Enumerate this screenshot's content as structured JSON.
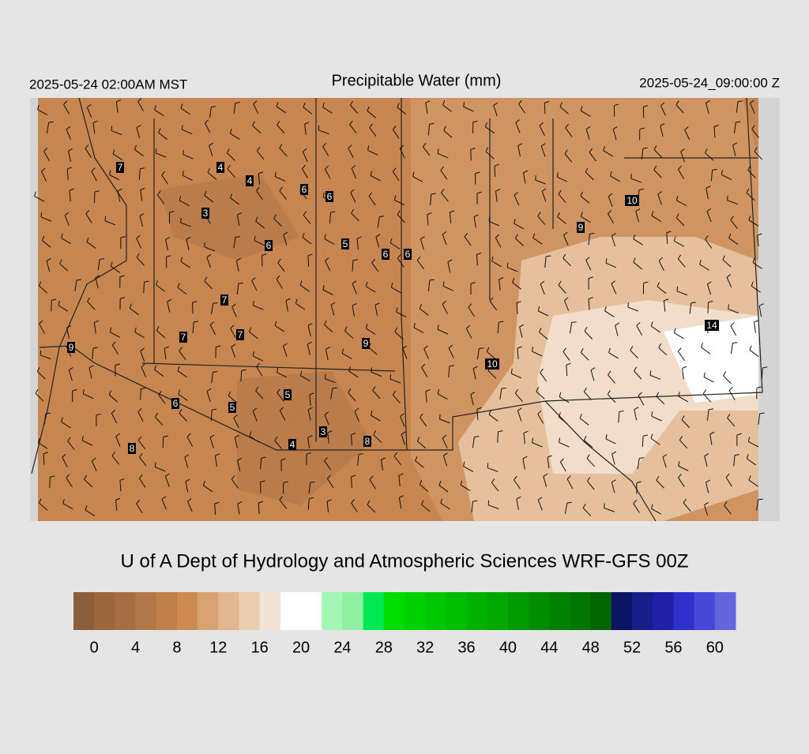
{
  "header": {
    "valid_local": "2025-05-24 02:00AM MST",
    "title": "Precipitable Water (mm)",
    "valid_utc": "2025-05-24_09:00:00 Z"
  },
  "map": {
    "station_values": [
      7,
      4,
      4,
      6,
      6,
      3,
      6,
      5,
      6,
      6,
      10,
      9,
      7,
      7,
      7,
      9,
      9,
      10,
      14,
      5,
      6,
      5,
      3,
      4,
      8,
      8
    ]
  },
  "footer": "U of A Dept of Hydrology and Atmospheric Sciences WRF-GFS 00Z",
  "colorbar": {
    "colors": [
      "#8b5e3c",
      "#9a673f",
      "#a66f43",
      "#b27747",
      "#c0804a",
      "#cd8b52",
      "#d8a273",
      "#e2b690",
      "#ebcdb1",
      "#f3e3d6",
      "#ffffff",
      "#ffffff",
      "#a5f5b5",
      "#8ef0a0",
      "#00e854",
      "#00dc00",
      "#00d200",
      "#00c800",
      "#00bd00",
      "#00b200",
      "#00a800",
      "#009b00",
      "#008e00",
      "#008200",
      "#007500",
      "#006400",
      "#0c1464",
      "#161e8c",
      "#2020a8",
      "#3030cc",
      "#4848d8",
      "#6464dc"
    ],
    "ticks": [
      0,
      4,
      8,
      12,
      16,
      20,
      24,
      28,
      32,
      36,
      40,
      44,
      48,
      52,
      56,
      60
    ]
  }
}
